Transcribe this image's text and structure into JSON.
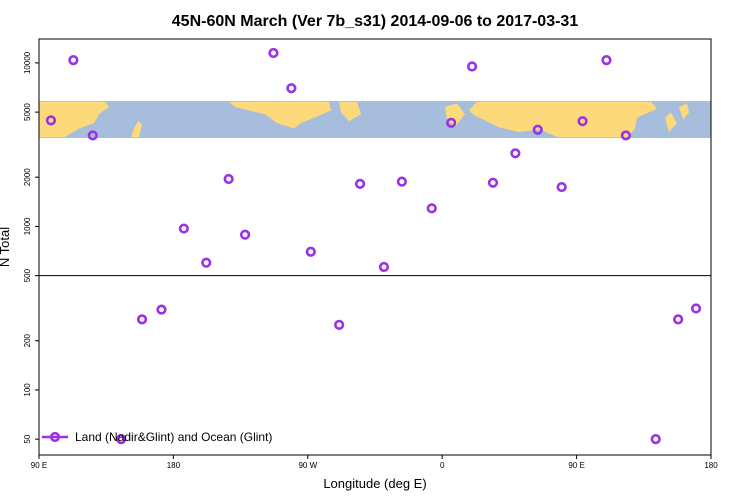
{
  "chart_data": {
    "type": "scatter",
    "title": "45N-60N March (Ver 7b_s31)   2014-09-06 to 2017-03-31",
    "xlabel": "Longitude (deg E)",
    "ylabel": "N Total",
    "xscale": "linear",
    "yscale": "log",
    "xlim": [
      90,
      540
    ],
    "ylim": [
      40,
      14000
    ],
    "x_ticks": [
      {
        "value": 90,
        "label": "90 E"
      },
      {
        "value": 180,
        "label": "180"
      },
      {
        "value": 270,
        "label": "90 W"
      },
      {
        "value": 360,
        "label": "0"
      },
      {
        "value": 450,
        "label": "90 E"
      },
      {
        "value": 540,
        "label": "180"
      }
    ],
    "y_ticks": [
      {
        "value": 50,
        "label": "50"
      },
      {
        "value": 100,
        "label": "100"
      },
      {
        "value": 200,
        "label": "200"
      },
      {
        "value": 500,
        "label": "500"
      },
      {
        "value": 1000,
        "label": "1000"
      },
      {
        "value": 2000,
        "label": "2000"
      },
      {
        "value": 5000,
        "label": "5000"
      },
      {
        "value": 10000,
        "label": "10000"
      }
    ],
    "reference_line": 500,
    "map_band": {
      "y_min": 3500,
      "y_max": 5800,
      "ocean_color": "#a6bddc",
      "land_color": "#fcd97a"
    },
    "legend": {
      "position": "bottom-left"
    },
    "series": [
      {
        "name": "Land (Nadir&Glint) and Ocean (Glint)",
        "color": "#9b30e6",
        "points": [
          {
            "x": 98,
            "y": 4450
          },
          {
            "x": 113,
            "y": 10400
          },
          {
            "x": 126,
            "y": 3600
          },
          {
            "x": 145,
            "y": 50
          },
          {
            "x": 159,
            "y": 270
          },
          {
            "x": 172,
            "y": 310
          },
          {
            "x": 187,
            "y": 970
          },
          {
            "x": 202,
            "y": 600
          },
          {
            "x": 217,
            "y": 1950
          },
          {
            "x": 228,
            "y": 890
          },
          {
            "x": 247,
            "y": 11500
          },
          {
            "x": 259,
            "y": 7000
          },
          {
            "x": 272,
            "y": 700
          },
          {
            "x": 291,
            "y": 250
          },
          {
            "x": 305,
            "y": 1820
          },
          {
            "x": 321,
            "y": 565
          },
          {
            "x": 333,
            "y": 1880
          },
          {
            "x": 353,
            "y": 1290
          },
          {
            "x": 366,
            "y": 4300
          },
          {
            "x": 380,
            "y": 9500
          },
          {
            "x": 394,
            "y": 1850
          },
          {
            "x": 409,
            "y": 2800
          },
          {
            "x": 424,
            "y": 3900
          },
          {
            "x": 440,
            "y": 1740
          },
          {
            "x": 454,
            "y": 4400
          },
          {
            "x": 470,
            "y": 10400
          },
          {
            "x": 483,
            "y": 3600
          },
          {
            "x": 503,
            "y": 50
          },
          {
            "x": 518,
            "y": 270
          },
          {
            "x": 530,
            "y": 315
          }
        ]
      }
    ]
  }
}
